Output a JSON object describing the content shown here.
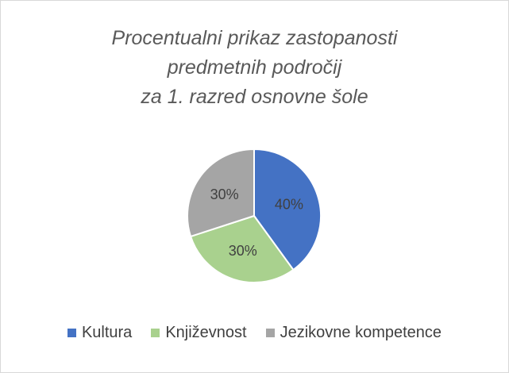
{
  "chart_data": {
    "type": "pie",
    "title_lines": [
      "Procentualni prikaz zastopanosti",
      "predmetnih področij",
      "za 1. razred osnovne šole"
    ],
    "categories": [
      "Kultura",
      "Književnost",
      "Jezikovne kompetence"
    ],
    "values": [
      40,
      30,
      30
    ],
    "data_labels": [
      "40%",
      "30%",
      "30%"
    ],
    "colors": [
      "#4472c4",
      "#a9d18e",
      "#a5a5a5"
    ],
    "legend_position": "bottom"
  }
}
